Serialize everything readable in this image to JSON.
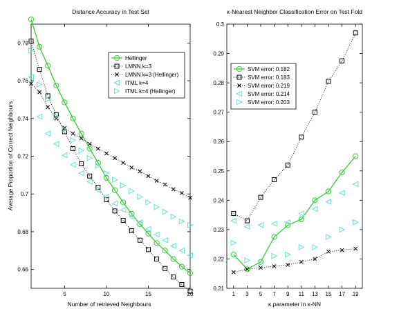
{
  "chart_data": [
    {
      "type": "line",
      "title": "Distance Accuracy in Test Set",
      "xlabel": "Number of retrieved Neighbours",
      "ylabel": "Average Proportion of Correct Neighbours",
      "xlim": [
        1,
        20
      ],
      "ylim": [
        0.65,
        0.79
      ],
      "xticks": [
        5,
        10,
        15,
        20
      ],
      "yticks": [
        0.66,
        0.68,
        0.7,
        0.72,
        0.74,
        0.76,
        0.78
      ],
      "ytick_labels": [
        "0.66",
        "0.68",
        "0.7",
        "0.72",
        "0.74",
        "0.76",
        "0.78"
      ],
      "grid": false,
      "legend_position": "top-right",
      "x": [
        1,
        2,
        3,
        4,
        5,
        6,
        7,
        8,
        9,
        10,
        11,
        12,
        13,
        14,
        15,
        16,
        17,
        18,
        19,
        20
      ],
      "series": [
        {
          "name": "Hellinger",
          "color": "#33cc33",
          "marker": "circle",
          "line": "solid",
          "values": [
            0.7925,
            0.778,
            0.768,
            0.7575,
            0.7485,
            0.74,
            0.732,
            0.724,
            0.7165,
            0.7085,
            0.702,
            0.6955,
            0.6895,
            0.684,
            0.679,
            0.674,
            0.67,
            0.6655,
            0.6615,
            0.658
          ]
        },
        {
          "name": "LMNN k=3",
          "color": "#000000",
          "marker": "square",
          "line": "dotted",
          "values": [
            0.781,
            0.766,
            0.752,
            0.742,
            0.733,
            0.724,
            0.716,
            0.7095,
            0.7035,
            0.697,
            0.691,
            0.686,
            0.6805,
            0.6755,
            0.6705,
            0.6655,
            0.6605,
            0.656,
            0.652,
            0.6485
          ]
        },
        {
          "name": "LMNN k=3 (Hellinger)",
          "color": "#000000",
          "marker": "x",
          "line": "dotted",
          "values": [
            0.7585,
            0.754,
            0.746,
            0.74,
            0.735,
            0.732,
            0.7295,
            0.7265,
            0.724,
            0.7215,
            0.719,
            0.7165,
            0.714,
            0.712,
            0.7095,
            0.707,
            0.705,
            0.7025,
            0.7005,
            0.698
          ]
        },
        {
          "name": "ITML k=4",
          "color": "#66e0d6",
          "marker": "triangle-left",
          "line": "none",
          "values": [
            0.762,
            0.741,
            0.732,
            0.7265,
            0.7205,
            0.7155,
            0.711,
            0.7065,
            0.702,
            0.6985,
            0.695,
            0.6915,
            0.688,
            0.685,
            0.6815,
            0.6785,
            0.6755,
            0.6725,
            0.67,
            0.6675
          ]
        },
        {
          "name": "ITML k=4 (Hellinger)",
          "color": "#66e0d6",
          "marker": "triangle-right",
          "line": "none",
          "values": [
            0.776,
            0.758,
            0.75,
            0.741,
            0.734,
            0.7285,
            0.723,
            0.719,
            0.715,
            0.711,
            0.7075,
            0.7045,
            0.7015,
            0.6985,
            0.6955,
            0.693,
            0.6905,
            0.688,
            0.6855,
            0.6835
          ]
        }
      ]
    },
    {
      "type": "line",
      "title": "κ-Nearest Neighbor Classification Error on Test Fold",
      "xlabel": "κ parameter in κ-NN",
      "ylabel": "",
      "xlim": [
        0,
        20
      ],
      "ylim": [
        0.21,
        0.3
      ],
      "xticks": [
        1,
        3,
        5,
        7,
        9,
        11,
        13,
        15,
        17,
        19
      ],
      "yticks": [
        0.21,
        0.22,
        0.23,
        0.24,
        0.25,
        0.26,
        0.27,
        0.28,
        0.29,
        0.3
      ],
      "ytick_labels": [
        "0.21",
        "0.22",
        "0.23",
        "0.24",
        "0.25",
        "0.26",
        "0.27",
        "0.28",
        "0.29",
        "0.3"
      ],
      "grid": false,
      "legend_position": "top-left",
      "x": [
        1,
        3,
        5,
        7,
        9,
        11,
        13,
        15,
        17,
        19
      ],
      "series": [
        {
          "name": "SVM error: 0.182",
          "color": "#33cc33",
          "marker": "circle",
          "line": "solid",
          "values": [
            0.2215,
            0.2165,
            0.219,
            0.2275,
            0.2315,
            0.2335,
            0.24,
            0.243,
            0.2495,
            0.255
          ]
        },
        {
          "name": "SVM error: 0.183",
          "color": "#000000",
          "marker": "square",
          "line": "dotted",
          "values": [
            0.2355,
            0.233,
            0.241,
            0.247,
            0.252,
            0.2615,
            0.27,
            0.2805,
            0.2875,
            0.297
          ]
        },
        {
          "name": "SVM error: 0.219",
          "color": "#000000",
          "marker": "x",
          "line": "dotted",
          "values": [
            0.2155,
            0.2165,
            0.217,
            0.2175,
            0.218,
            0.219,
            0.22,
            0.2225,
            0.223,
            0.2235
          ]
        },
        {
          "name": "SVM error: 0.214",
          "color": "#66e0d6",
          "marker": "triangle-left",
          "line": "none",
          "values": [
            0.233,
            0.231,
            0.2315,
            0.232,
            0.2325,
            0.2355,
            0.237,
            0.2395,
            0.2425,
            0.2455
          ]
        },
        {
          "name": "SVM error: 0.203",
          "color": "#66e0d6",
          "marker": "triangle-right",
          "line": "none",
          "values": [
            0.2255,
            0.2195,
            0.2185,
            0.221,
            0.2215,
            0.224,
            0.224,
            0.2275,
            0.23,
            0.2325
          ]
        }
      ]
    }
  ]
}
